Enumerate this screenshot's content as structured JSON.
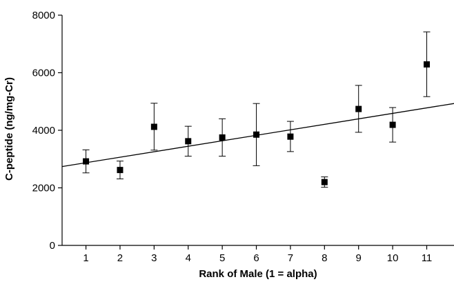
{
  "chart_data": {
    "type": "scatter",
    "xlabel": "Rank of Male (1 = alpha)",
    "ylabel": "C-peptide (ng/mg-Cr)",
    "xlim": [
      0.3,
      11.8
    ],
    "ylim": [
      0,
      8000
    ],
    "x_ticks": [
      1,
      2,
      3,
      4,
      5,
      6,
      7,
      8,
      9,
      10,
      11
    ],
    "y_ticks": [
      0,
      2000,
      4000,
      6000,
      8000
    ],
    "grid": false,
    "legend": "none",
    "series": [
      {
        "marker": "square",
        "color": "#000000",
        "points": [
          {
            "x": 1,
            "y": 2920,
            "err_low": 2520,
            "err_high": 3320
          },
          {
            "x": 2,
            "y": 2620,
            "err_low": 2310,
            "err_high": 2930
          },
          {
            "x": 3,
            "y": 4120,
            "err_low": 3310,
            "err_high": 4940
          },
          {
            "x": 4,
            "y": 3620,
            "err_low": 3100,
            "err_high": 4140
          },
          {
            "x": 5,
            "y": 3750,
            "err_low": 3100,
            "err_high": 4400
          },
          {
            "x": 6,
            "y": 3850,
            "err_low": 2770,
            "err_high": 4930
          },
          {
            "x": 7,
            "y": 3780,
            "err_low": 3260,
            "err_high": 4310
          },
          {
            "x": 8,
            "y": 2200,
            "err_low": 2020,
            "err_high": 2380
          },
          {
            "x": 9,
            "y": 4740,
            "err_low": 3930,
            "err_high": 5560
          },
          {
            "x": 10,
            "y": 4190,
            "err_low": 3590,
            "err_high": 4790
          },
          {
            "x": 11,
            "y": 6290,
            "err_low": 5170,
            "err_high": 7420
          }
        ]
      }
    ],
    "trendline": {
      "type": "linear",
      "color": "#000000",
      "x_start": 0.3,
      "y_start": 2740,
      "x_end": 11.8,
      "y_end": 4930
    }
  }
}
